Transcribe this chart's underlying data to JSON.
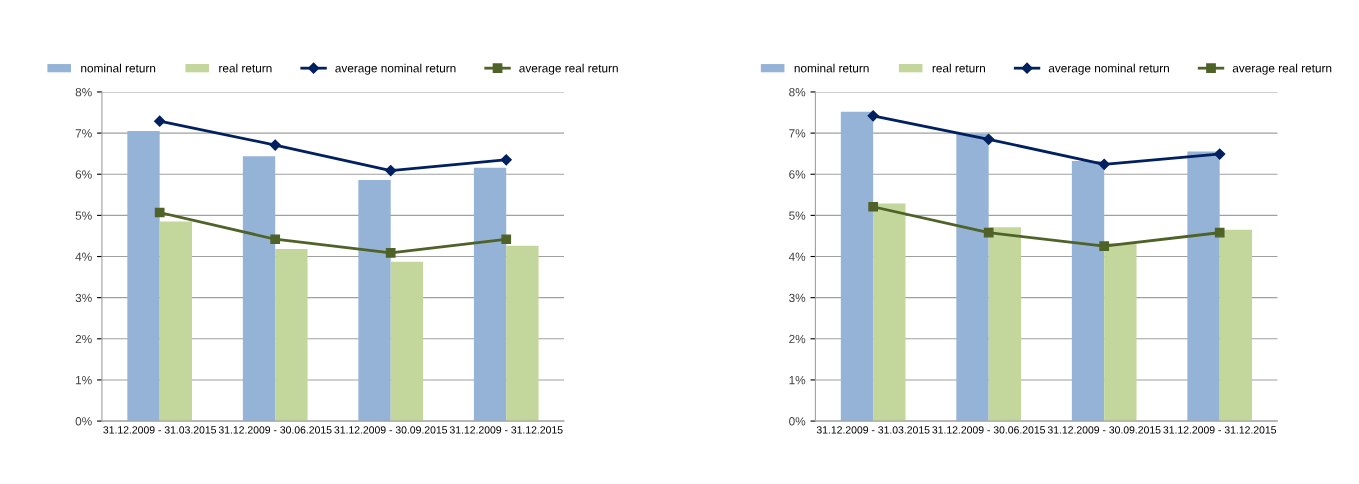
{
  "chart_data": [
    {
      "type": "bar",
      "categories": [
        "31.12.2009 - 31.03.2015",
        "31.12.2009 - 30.06.2015",
        "31.12.2009 - 30.09.2015",
        "31.12.2009 - 31.12.2015"
      ],
      "series": [
        {
          "name": "nominal return",
          "color": "#95b3d7",
          "values": [
            7.05,
            6.44,
            5.86,
            6.16
          ]
        },
        {
          "name": "real return",
          "color": "#c3d69b",
          "values": [
            4.85,
            4.18,
            3.87,
            4.26
          ]
        },
        {
          "name": "average nominal return",
          "type": "line",
          "marker": "diamond",
          "color": "#002060",
          "values": [
            7.29,
            6.71,
            6.09,
            6.35
          ]
        },
        {
          "name": "average real return",
          "type": "line",
          "marker": "square",
          "color": "#4f6228",
          "values": [
            5.07,
            4.42,
            4.09,
            4.42
          ]
        }
      ],
      "ylim": [
        0,
        8
      ],
      "yticks": [
        {
          "value": 0,
          "label": "0%"
        },
        {
          "value": 1,
          "label": "1%"
        },
        {
          "value": 2,
          "label": "2%"
        },
        {
          "value": 3,
          "label": "3%"
        },
        {
          "value": 4,
          "label": "4%"
        },
        {
          "value": 5,
          "label": "5%"
        },
        {
          "value": 6,
          "label": "6%"
        },
        {
          "value": 7,
          "label": "7%"
        },
        {
          "value": 8,
          "label": "8%"
        }
      ],
      "grid": "y",
      "legend": "top"
    },
    {
      "type": "bar",
      "categories": [
        "31.12.2009 - 31.03.2015",
        "31.12.2009 - 30.06.2015",
        "31.12.2009 - 30.09.2015",
        "31.12.2009 - 31.12.2015"
      ],
      "series": [
        {
          "name": "nominal return",
          "color": "#95b3d7",
          "values": [
            7.52,
            6.98,
            6.32,
            6.55
          ]
        },
        {
          "name": "real return",
          "color": "#c3d69b",
          "values": [
            5.29,
            4.71,
            4.33,
            4.65
          ]
        },
        {
          "name": "average nominal return",
          "type": "line",
          "marker": "diamond",
          "color": "#002060",
          "values": [
            7.42,
            6.85,
            6.24,
            6.49
          ]
        },
        {
          "name": "average real return",
          "type": "line",
          "marker": "square",
          "color": "#4f6228",
          "values": [
            5.21,
            4.58,
            4.25,
            4.58
          ]
        }
      ],
      "ylim": [
        0,
        8
      ],
      "yticks": [
        {
          "value": 0,
          "label": "0%"
        },
        {
          "value": 1,
          "label": "1%"
        },
        {
          "value": 2,
          "label": "2%"
        },
        {
          "value": 3,
          "label": "3%"
        },
        {
          "value": 4,
          "label": "4%"
        },
        {
          "value": 5,
          "label": "5%"
        },
        {
          "value": 6,
          "label": "6%"
        },
        {
          "value": 7,
          "label": "7%"
        },
        {
          "value": 8,
          "label": "8%"
        }
      ],
      "grid": "y",
      "legend": "top"
    }
  ]
}
